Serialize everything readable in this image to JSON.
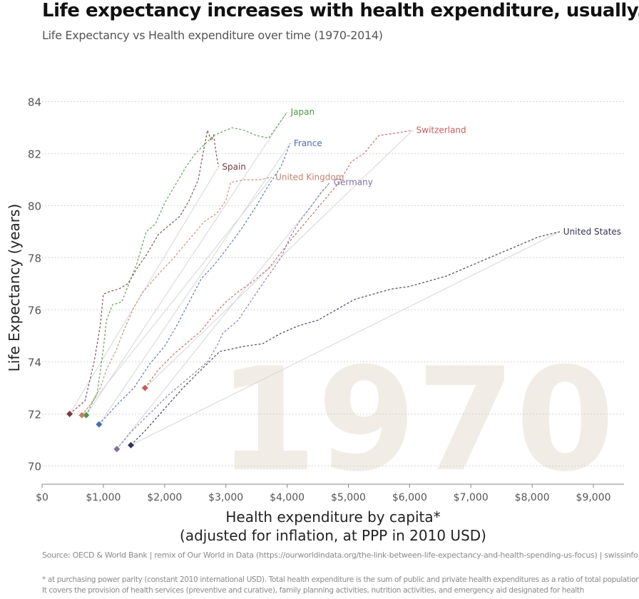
{
  "header": {
    "title": "Life expectancy increases with health expenditure, usually...",
    "subtitle": "Life Expectancy vs Health expenditure over time (1970-2014)"
  },
  "footer": {
    "source": "Source: OECD & World Bank | remix of Our World in Data (https://ourworldindata.org/the-link-between-life-expectancy-and-health-spending-us-focus) | swissinfo.ch",
    "footnote_line1": "* at purchasing power parity (constant 2010 international USD). Total health expenditure is the sum of public and private health expenditures as a ratio of total population.",
    "footnote_line2": "It covers the provision of health services (preventive and curative), family planning activities, nutrition activities, and emergency aid designated for health"
  },
  "chart_data": {
    "type": "line",
    "title": "Life expectancy increases with health expenditure, usually...",
    "subtitle": "Life Expectancy vs Health expenditure over time (1970-2014)",
    "xlabel": "Health expenditure by capita*",
    "xlabel_line2": "(adjusted for inflation, at PPP in 2010 USD)",
    "ylabel": "Life Expectancy (years)",
    "xlim": [
      0,
      9500
    ],
    "ylim": [
      69.3,
      84.4
    ],
    "xticks": [
      0,
      1000,
      2000,
      3000,
      4000,
      5000,
      6000,
      7000,
      8000,
      9000
    ],
    "xtick_labels": [
      "$0",
      "$1,000",
      "$2,000",
      "$3,000",
      "$4,000",
      "$5,000",
      "$6,000",
      "$7,000",
      "$8,000",
      "$9,000"
    ],
    "yticks": [
      70,
      72,
      74,
      76,
      78,
      80,
      82,
      84
    ],
    "ytick_labels": [
      "70",
      "72",
      "74",
      "76",
      "78",
      "80",
      "82",
      "84"
    ],
    "grid": "horizontal dotted",
    "year_watermark": "1970",
    "series": [
      {
        "name": "Japan",
        "color": "#4a9a45",
        "start": [
          720,
          71.95
        ],
        "end": [
          4000,
          83.6
        ],
        "points": [
          [
            720,
            71.95
          ],
          [
            900,
            72.8
          ],
          [
            1000,
            74.5
          ],
          [
            1050,
            75.6
          ],
          [
            1150,
            76.2
          ],
          [
            1300,
            76.3
          ],
          [
            1400,
            76.9
          ],
          [
            1550,
            77.8
          ],
          [
            1700,
            79.0
          ],
          [
            1850,
            79.3
          ],
          [
            2000,
            80.1
          ],
          [
            2150,
            80.7
          ],
          [
            2350,
            81.5
          ],
          [
            2500,
            82.0
          ],
          [
            2800,
            82.7
          ],
          [
            3100,
            83.0
          ],
          [
            3300,
            82.9
          ],
          [
            3500,
            82.7
          ],
          [
            3700,
            82.6
          ],
          [
            4000,
            83.6
          ]
        ]
      },
      {
        "name": "Spain",
        "color": "#7a3b3b",
        "start": [
          450,
          72.0
        ],
        "end": [
          2880,
          81.5
        ],
        "points": [
          [
            450,
            72.0
          ],
          [
            700,
            72.5
          ],
          [
            850,
            74.0
          ],
          [
            950,
            75.4
          ],
          [
            1000,
            76.6
          ],
          [
            1100,
            76.7
          ],
          [
            1250,
            76.8
          ],
          [
            1400,
            77.0
          ],
          [
            1550,
            77.6
          ],
          [
            1700,
            78.1
          ],
          [
            1900,
            78.9
          ],
          [
            2050,
            79.2
          ],
          [
            2250,
            79.6
          ],
          [
            2400,
            80.2
          ],
          [
            2550,
            81.0
          ],
          [
            2650,
            82.3
          ],
          [
            2700,
            82.9
          ],
          [
            2760,
            82.5
          ],
          [
            2800,
            82.7
          ],
          [
            2850,
            81.9
          ],
          [
            2880,
            81.5
          ]
        ]
      },
      {
        "name": "United Kingdom",
        "color": "#c4826a",
        "start": [
          650,
          71.95
        ],
        "end": [
          3750,
          81.1
        ],
        "points": [
          [
            650,
            71.95
          ],
          [
            800,
            72.4
          ],
          [
            950,
            73.0
          ],
          [
            1050,
            73.7
          ],
          [
            1200,
            74.4
          ],
          [
            1350,
            75.3
          ],
          [
            1500,
            76.1
          ],
          [
            1650,
            76.7
          ],
          [
            1800,
            77.1
          ],
          [
            1950,
            77.5
          ],
          [
            2150,
            78.0
          ],
          [
            2400,
            78.7
          ],
          [
            2650,
            79.4
          ],
          [
            2850,
            79.7
          ],
          [
            3000,
            80.2
          ],
          [
            3080,
            80.9
          ],
          [
            3300,
            81.0
          ],
          [
            3550,
            81.0
          ],
          [
            3750,
            81.1
          ]
        ]
      },
      {
        "name": "France",
        "color": "#4a6ab8",
        "start": [
          930,
          71.6
        ],
        "end": [
          4050,
          82.4
        ],
        "points": [
          [
            930,
            71.6
          ],
          [
            1200,
            72.3
          ],
          [
            1500,
            73.0
          ],
          [
            1750,
            73.9
          ],
          [
            2000,
            74.6
          ],
          [
            2200,
            75.4
          ],
          [
            2400,
            76.3
          ],
          [
            2600,
            77.2
          ],
          [
            2800,
            77.7
          ],
          [
            3000,
            78.3
          ],
          [
            3250,
            79.1
          ],
          [
            3500,
            80.0
          ],
          [
            3700,
            80.8
          ],
          [
            3900,
            81.5
          ],
          [
            4050,
            82.4
          ]
        ]
      },
      {
        "name": "Switzerland",
        "color": "#c85a5a",
        "start": [
          1680,
          73.0
        ],
        "end": [
          6050,
          82.9
        ],
        "points": [
          [
            1680,
            73.0
          ],
          [
            1900,
            73.7
          ],
          [
            2150,
            74.3
          ],
          [
            2400,
            74.8
          ],
          [
            2600,
            75.2
          ],
          [
            2800,
            75.8
          ],
          [
            3000,
            76.3
          ],
          [
            3200,
            76.7
          ],
          [
            3450,
            77.1
          ],
          [
            3700,
            77.6
          ],
          [
            3900,
            78.2
          ],
          [
            4100,
            78.8
          ],
          [
            4350,
            79.5
          ],
          [
            4600,
            80.2
          ],
          [
            4850,
            80.9
          ],
          [
            5050,
            81.7
          ],
          [
            5250,
            82.0
          ],
          [
            5500,
            82.7
          ],
          [
            5800,
            82.8
          ],
          [
            6050,
            82.9
          ]
        ]
      },
      {
        "name": "Germany",
        "color": "#8070a8",
        "start": [
          1220,
          70.65
        ],
        "end": [
          4700,
          80.9
        ],
        "points": [
          [
            1220,
            70.65
          ],
          [
            1450,
            71.3
          ],
          [
            1750,
            72.0
          ],
          [
            2050,
            72.7
          ],
          [
            2400,
            73.4
          ],
          [
            2700,
            74.0
          ],
          [
            2850,
            74.6
          ],
          [
            2950,
            75.1
          ],
          [
            3200,
            75.6
          ],
          [
            3400,
            76.3
          ],
          [
            3600,
            77.0
          ],
          [
            3750,
            77.5
          ],
          [
            3900,
            78.0
          ],
          [
            4050,
            78.8
          ],
          [
            4200,
            79.4
          ],
          [
            4400,
            80.0
          ],
          [
            4550,
            80.5
          ],
          [
            4700,
            80.9
          ]
        ]
      },
      {
        "name": "United States",
        "color": "#333355",
        "start": [
          1450,
          70.8
        ],
        "end": [
          8450,
          79.0
        ],
        "points": [
          [
            1450,
            70.8
          ],
          [
            1700,
            71.4
          ],
          [
            2000,
            72.2
          ],
          [
            2300,
            73.0
          ],
          [
            2600,
            73.7
          ],
          [
            2900,
            74.4
          ],
          [
            3300,
            74.6
          ],
          [
            3600,
            74.7
          ],
          [
            3900,
            75.1
          ],
          [
            4200,
            75.4
          ],
          [
            4500,
            75.6
          ],
          [
            4800,
            76.0
          ],
          [
            5100,
            76.4
          ],
          [
            5400,
            76.6
          ],
          [
            5700,
            76.8
          ],
          [
            6000,
            76.9
          ],
          [
            6300,
            77.1
          ],
          [
            6600,
            77.3
          ],
          [
            6900,
            77.6
          ],
          [
            7200,
            77.9
          ],
          [
            7500,
            78.2
          ],
          [
            7800,
            78.5
          ],
          [
            8100,
            78.8
          ],
          [
            8450,
            79.0
          ]
        ]
      }
    ]
  }
}
